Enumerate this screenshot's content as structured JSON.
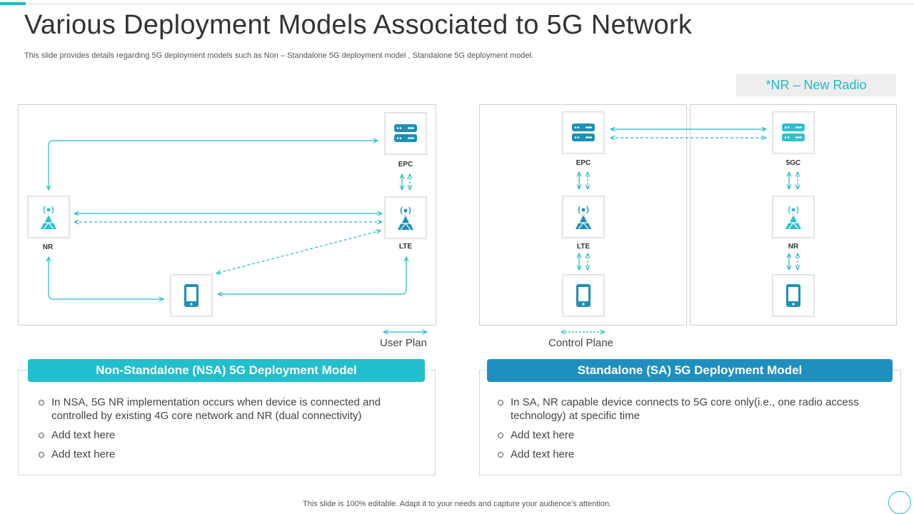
{
  "header": {
    "title": "Various Deployment Models Associated to 5G Network",
    "subtitle": "This slide provides details regarding 5G deployment models such as Non – Standalone 5G deployment model , Standalone 5G deployment model."
  },
  "legend_box": {
    "text": "*NR – New Radio"
  },
  "colors": {
    "accent": "#22b8c9",
    "dark_accent": "#1f8fbf",
    "icon": "#1e8fb5",
    "icon_light": "#2fbfcf"
  },
  "diagram": {
    "nsa": {
      "epc_label": "EPC",
      "lte_label": "LTE",
      "nr_label": "NR"
    },
    "sa_left": {
      "epc_label": "EPC",
      "lte_label": "LTE"
    },
    "sa_right": {
      "core_label": "5GC",
      "nr_label": "NR"
    },
    "legend": {
      "user_plane": "User Plan",
      "control_plane": "Control Plane"
    }
  },
  "cards": {
    "nsa": {
      "heading": "Non-Standalone (NSA) 5G Deployment Model",
      "bullets": [
        "In NSA, 5G NR implementation occurs when device is connected and controlled by existing 4G core network and NR (dual connectivity)",
        "Add text here",
        "Add text here"
      ]
    },
    "sa": {
      "heading": "Standalone (SA) 5G Deployment Model",
      "bullets": [
        "In SA, NR capable device connects to 5G core only(i.e.,  one radio access technology) at specific time",
        "Add text here",
        "Add text here"
      ]
    }
  },
  "footer": {
    "text": "This slide is 100% editable. Adapt it to your needs and capture your audience’s attention."
  }
}
